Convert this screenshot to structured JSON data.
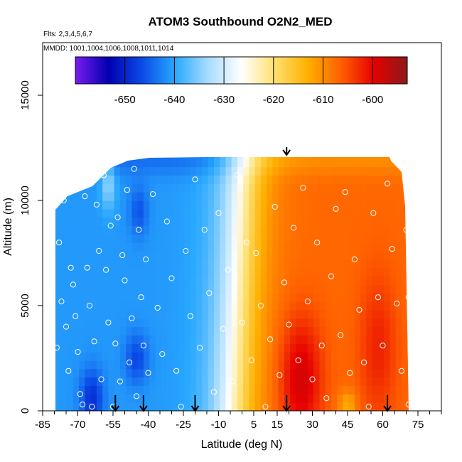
{
  "chart_data": {
    "type": "heatmap",
    "title": "ATOM3 Southbound O2N2_MED",
    "subtitle_flights": "Flts: 2,3,4,5,6,7",
    "subtitle_dates": "MMDD: 1001,1004,1006,1008,1011,1014",
    "xlabel": "Latitude (deg N)",
    "ylabel": "Altitude (m)",
    "xlim": [
      -85,
      85
    ],
    "ylim": [
      0,
      17500
    ],
    "x_ticks": [
      "-85",
      "-70",
      "-55",
      "-40",
      "-25",
      "-10",
      "5",
      "15",
      "30",
      "45",
      "60",
      "75"
    ],
    "x_tick_values": [
      -85,
      -70,
      -55,
      -40,
      -25,
      -10,
      5,
      15,
      30,
      45,
      60,
      75
    ],
    "y_ticks": [
      "0",
      "5000",
      "10000",
      "15000"
    ],
    "y_tick_values": [
      0,
      5000,
      10000,
      15000
    ],
    "colorbar": {
      "range": [
        -660,
        -593
      ],
      "ticks": [
        "-650",
        "-640",
        "-630",
        "-620",
        "-610",
        "-600"
      ],
      "tick_values": [
        -650,
        -640,
        -630,
        -620,
        -610,
        -600
      ],
      "colors": [
        "#7a1cf0",
        "#0000b0",
        "#0a4ae6",
        "#28a8ff",
        "#a8dcff",
        "#ffffff",
        "#ffe070",
        "#ffb000",
        "#ff6000",
        "#e60000",
        "#8b1a1a"
      ]
    },
    "profile_markers_lat": [
      -54,
      -42,
      -20,
      19,
      62
    ],
    "top_marker_lat": 19,
    "field_value_range": [
      -655,
      -598
    ],
    "observation_points": [
      [
        -79,
        3000
      ],
      [
        -78,
        8000
      ],
      [
        -77,
        5200
      ],
      [
        -76,
        10000
      ],
      [
        -75,
        4000
      ],
      [
        -74,
        1900
      ],
      [
        -73,
        6800
      ],
      [
        -72,
        6000
      ],
      [
        -71,
        4500
      ],
      [
        -70,
        2800
      ],
      [
        -69,
        800
      ],
      [
        -68,
        300
      ],
      [
        -67,
        10200
      ],
      [
        -66,
        6800
      ],
      [
        -65,
        5000
      ],
      [
        -64,
        200
      ],
      [
        -63,
        3300
      ],
      [
        -62,
        9800
      ],
      [
        -61,
        7600
      ],
      [
        -60,
        1500
      ],
      [
        -59,
        11200
      ],
      [
        -58,
        6700
      ],
      [
        -57,
        4200
      ],
      [
        -56,
        8800
      ],
      [
        -55,
        200
      ],
      [
        -54,
        3200
      ],
      [
        -53,
        9200
      ],
      [
        -52,
        1400
      ],
      [
        -51,
        7400
      ],
      [
        -50,
        6200
      ],
      [
        -49,
        10500
      ],
      [
        -48,
        2300
      ],
      [
        -47,
        4400
      ],
      [
        -46,
        11500
      ],
      [
        -45,
        700
      ],
      [
        -44,
        8600
      ],
      [
        -43,
        5400
      ],
      [
        -42,
        3100
      ],
      [
        -41,
        7200
      ],
      [
        -40,
        1800
      ],
      [
        -38,
        10300
      ],
      [
        -36,
        4900
      ],
      [
        -34,
        2700
      ],
      [
        -32,
        9000
      ],
      [
        -30,
        6300
      ],
      [
        -28,
        1900
      ],
      [
        -26,
        200
      ],
      [
        -24,
        7600
      ],
      [
        -22,
        4500
      ],
      [
        -20,
        11000
      ],
      [
        -18,
        3000
      ],
      [
        -16,
        8600
      ],
      [
        -14,
        5600
      ],
      [
        -12,
        900
      ],
      [
        -10,
        9400
      ],
      [
        -8,
        3900
      ],
      [
        -6,
        6700
      ],
      [
        -4,
        1400
      ],
      [
        -2,
        11200
      ],
      [
        0,
        4200
      ],
      [
        2,
        8000
      ],
      [
        4,
        2400
      ],
      [
        6,
        7500
      ],
      [
        8,
        5000
      ],
      [
        10,
        200
      ],
      [
        12,
        3400
      ],
      [
        14,
        9700
      ],
      [
        16,
        1700
      ],
      [
        18,
        6100
      ],
      [
        20,
        4100
      ],
      [
        22,
        8700
      ],
      [
        24,
        2400
      ],
      [
        26,
        10600
      ],
      [
        28,
        5200
      ],
      [
        30,
        1500
      ],
      [
        32,
        8000
      ],
      [
        34,
        3100
      ],
      [
        36,
        600
      ],
      [
        38,
        6400
      ],
      [
        40,
        9600
      ],
      [
        42,
        3600
      ],
      [
        44,
        10400
      ],
      [
        46,
        1800
      ],
      [
        48,
        7200
      ],
      [
        50,
        4800
      ],
      [
        52,
        2300
      ],
      [
        54,
        200
      ],
      [
        56,
        9400
      ],
      [
        58,
        5400
      ],
      [
        60,
        3100
      ],
      [
        62,
        10800
      ],
      [
        64,
        7700
      ],
      [
        66,
        5100
      ],
      [
        68,
        1900
      ],
      [
        70,
        8600
      ],
      [
        71,
        5400
      ],
      [
        71,
        300
      ]
    ]
  }
}
